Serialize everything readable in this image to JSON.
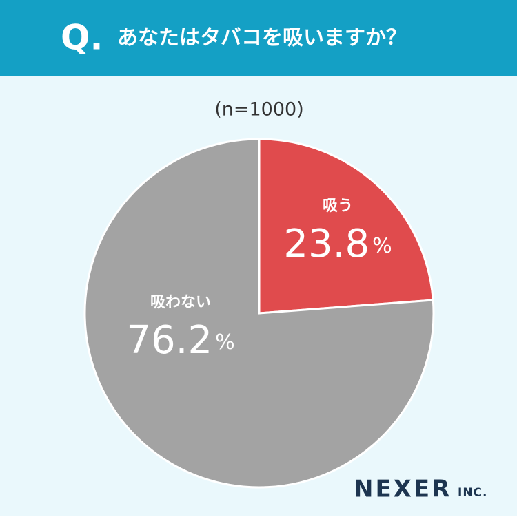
{
  "header": {
    "mark": "Q.",
    "question": "あなたはタバコを吸いますか？"
  },
  "chart_data": {
    "type": "pie",
    "subtitle": "(n=1000)",
    "categories": [
      "吸う",
      "吸わない"
    ],
    "values": [
      23.8,
      76.2
    ],
    "value_labels": [
      "23.8%",
      "76.2%"
    ],
    "colors": [
      "#e04b4d",
      "#a3a3a3"
    ]
  },
  "footer": {
    "brand": "NEXER",
    "suffix": "INC."
  }
}
